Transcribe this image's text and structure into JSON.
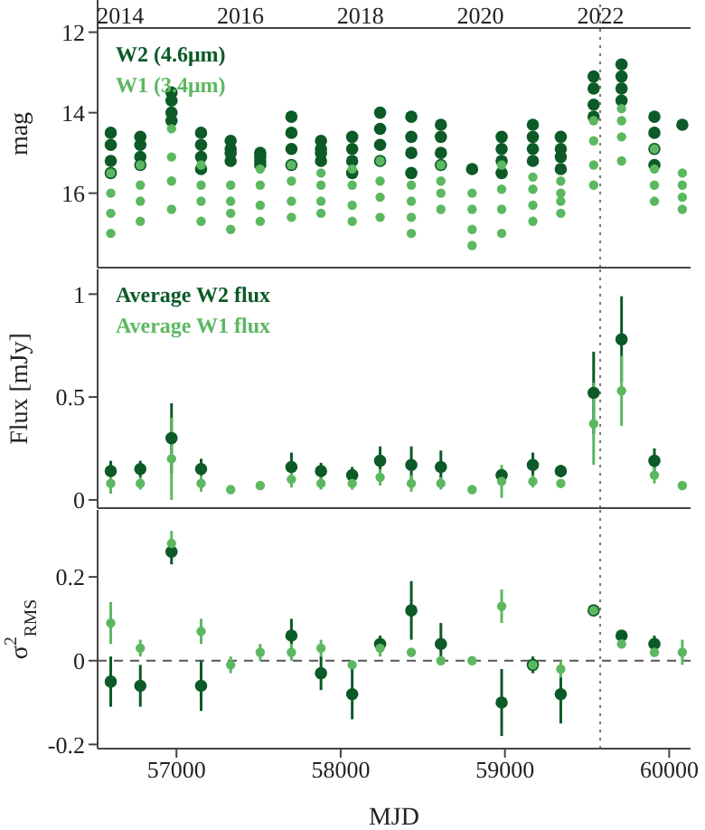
{
  "chart_data": [
    {
      "type": "scatter",
      "ylabel": "mag",
      "xlim": [
        56520,
        60130
      ],
      "xticks": [
        57000,
        58000,
        59000,
        60000
      ],
      "ylim": [
        17.85,
        11.2
      ],
      "yticks": [
        12,
        14,
        16
      ],
      "x2lim": [
        2013.62,
        2023.5
      ],
      "x2ticks": [
        2014,
        2016,
        2018,
        2020,
        2022
      ],
      "tick_labels": "y",
      "marker": "circle",
      "legend": "top left",
      "ref_lines": [
        {
          "axis": "x",
          "value": 59580,
          "line_style": "dotted",
          "color": "#777777"
        }
      ],
      "series": [
        {
          "name": "W2 (4.6μm)",
          "color": "#0b5a27",
          "x": [
            56600,
            56600,
            56600,
            56600,
            56780,
            56780,
            56780,
            56780,
            56970,
            56970,
            56970,
            56970,
            57150,
            57150,
            57150,
            57150,
            57330,
            57330,
            57330,
            57330,
            57510,
            57510,
            57510,
            57510,
            57700,
            57700,
            57700,
            57700,
            57880,
            57880,
            57880,
            57880,
            58070,
            58070,
            58070,
            58070,
            58240,
            58240,
            58240,
            58240,
            58430,
            58430,
            58430,
            58430,
            58610,
            58610,
            58610,
            58610,
            58800,
            58980,
            58980,
            58980,
            58980,
            59170,
            59170,
            59170,
            59170,
            59340,
            59340,
            59340,
            59340,
            59540,
            59540,
            59540,
            59540,
            59710,
            59710,
            59710,
            59710,
            59910,
            59910,
            59910,
            59910,
            60080
          ],
          "values": [
            14.5,
            14.8,
            15.2,
            15.5,
            14.6,
            14.8,
            15.1,
            15.3,
            13.5,
            13.7,
            14.0,
            14.2,
            14.5,
            14.8,
            15.1,
            15.4,
            14.7,
            14.9,
            15.0,
            15.2,
            15.0,
            15.1,
            15.2,
            15.3,
            14.1,
            14.5,
            14.9,
            15.3,
            14.7,
            14.9,
            15.0,
            15.2,
            14.6,
            14.9,
            15.2,
            15.5,
            14.0,
            14.4,
            14.8,
            15.2,
            14.1,
            14.6,
            15.0,
            15.5,
            14.3,
            14.6,
            15.0,
            15.3,
            15.4,
            14.6,
            14.9,
            15.2,
            15.5,
            14.3,
            14.6,
            14.9,
            15.2,
            14.6,
            14.9,
            15.1,
            15.4,
            13.1,
            13.4,
            13.8,
            14.1,
            12.8,
            13.1,
            13.4,
            13.7,
            14.1,
            14.5,
            14.9,
            15.3,
            14.3
          ]
        },
        {
          "name": "W1 (3.4μm)",
          "color": "#5cb860",
          "x": [
            56600,
            56600,
            56600,
            56600,
            56780,
            56780,
            56780,
            56780,
            56970,
            56970,
            56970,
            56970,
            57150,
            57150,
            57150,
            57150,
            57330,
            57330,
            57330,
            57330,
            57510,
            57510,
            57510,
            57510,
            57700,
            57700,
            57700,
            57700,
            57880,
            57880,
            57880,
            57880,
            58070,
            58070,
            58070,
            58070,
            58240,
            58240,
            58240,
            58240,
            58430,
            58430,
            58430,
            58430,
            58610,
            58610,
            58610,
            58610,
            58800,
            58800,
            58800,
            58800,
            58980,
            58980,
            58980,
            58980,
            59170,
            59170,
            59170,
            59170,
            59340,
            59340,
            59340,
            59340,
            59540,
            59540,
            59540,
            59540,
            59710,
            59710,
            59710,
            59710,
            59910,
            59910,
            59910,
            59910,
            60080,
            60080,
            60080,
            60080
          ],
          "values": [
            15.5,
            16.0,
            16.5,
            17.0,
            15.3,
            15.8,
            16.2,
            16.7,
            14.4,
            15.1,
            15.7,
            16.4,
            15.3,
            15.8,
            16.2,
            16.7,
            15.8,
            16.2,
            16.5,
            16.9,
            15.4,
            15.8,
            16.3,
            16.7,
            15.3,
            15.7,
            16.2,
            16.6,
            15.5,
            15.8,
            16.2,
            16.5,
            15.4,
            15.8,
            16.3,
            16.7,
            15.2,
            15.7,
            16.1,
            16.6,
            15.8,
            16.2,
            16.6,
            17.0,
            15.3,
            15.7,
            16.0,
            16.4,
            16.0,
            16.4,
            16.9,
            17.3,
            15.3,
            15.9,
            16.4,
            17.0,
            15.6,
            15.9,
            16.3,
            16.7,
            15.7,
            16.0,
            16.2,
            16.5,
            14.2,
            14.7,
            15.3,
            15.8,
            13.9,
            14.2,
            14.6,
            15.2,
            14.9,
            15.4,
            15.8,
            16.2,
            15.5,
            15.8,
            16.1,
            16.4
          ]
        }
      ]
    },
    {
      "type": "scatter",
      "ylabel": "Flux [mJy]",
      "x": [
        56600,
        56780,
        56970,
        57150,
        57330,
        57510,
        57700,
        57880,
        58070,
        58240,
        58430,
        58610,
        58800,
        58980,
        59170,
        59340,
        59540,
        59710,
        59910,
        60080
      ],
      "xlim": [
        56520,
        60130
      ],
      "xticks": [
        57000,
        58000,
        59000,
        60000
      ],
      "ylim": [
        -0.04,
        1.12
      ],
      "yticks": [
        0,
        0.5,
        1
      ],
      "tick_labels": "y",
      "marker": "circle",
      "legend": "top left",
      "ref_lines": [
        {
          "axis": "x",
          "value": 59580,
          "line_style": "dotted",
          "color": "#777777"
        }
      ],
      "series": [
        {
          "name": "Average W2 flux",
          "color": "#0b5a27",
          "values": [
            0.14,
            0.15,
            0.3,
            0.15,
            null,
            null,
            0.16,
            0.14,
            0.12,
            0.19,
            0.17,
            0.16,
            null,
            0.12,
            0.17,
            0.14,
            0.52,
            0.78,
            0.19,
            null
          ],
          "errors": [
            0.05,
            0.04,
            0.17,
            0.05,
            null,
            null,
            0.07,
            0.04,
            0.04,
            0.07,
            0.09,
            0.08,
            null,
            0.03,
            0.06,
            0.03,
            0.2,
            0.21,
            0.06,
            null
          ]
        },
        {
          "name": "Average W1 flux",
          "color": "#5cb860",
          "values": [
            0.08,
            0.08,
            0.2,
            0.08,
            0.05,
            0.07,
            0.1,
            0.08,
            0.08,
            0.11,
            0.08,
            0.08,
            0.05,
            0.09,
            0.09,
            0.08,
            0.37,
            0.53,
            0.12,
            0.07
          ],
          "errors": [
            0.05,
            0.03,
            0.2,
            0.04,
            0.01,
            0.02,
            0.04,
            0.03,
            0.03,
            0.04,
            0.04,
            0.03,
            0.01,
            0.08,
            0.03,
            0.02,
            0.2,
            0.17,
            0.04,
            0.02
          ]
        }
      ]
    },
    {
      "type": "scatter",
      "ylabel": "σ$^{2}$$_{RMS}$",
      "xlabel": "MJD",
      "x": [
        56600,
        56780,
        56970,
        57150,
        57330,
        57510,
        57700,
        57880,
        58070,
        58240,
        58430,
        58610,
        58800,
        58980,
        59170,
        59340,
        59540,
        59710,
        59910,
        60080
      ],
      "xlim": [
        56520,
        60130
      ],
      "xticks": [
        57000,
        58000,
        59000,
        60000
      ],
      "ylim": [
        -0.21,
        0.36
      ],
      "yticks": [
        -0.2,
        0,
        0.2
      ],
      "marker": "circle",
      "ref_lines": [
        {
          "axis": "x",
          "value": 59580,
          "line_style": "dotted",
          "color": "#777777"
        },
        {
          "axis": "y",
          "value": 0,
          "line_style": "dashed",
          "color": "#555555"
        }
      ],
      "series": [
        {
          "color": "#0b5a27",
          "values": [
            -0.05,
            -0.06,
            0.26,
            -0.06,
            null,
            null,
            0.06,
            -0.03,
            -0.08,
            0.04,
            0.12,
            0.04,
            null,
            -0.1,
            -0.01,
            -0.08,
            0.12,
            0.06,
            0.04,
            null
          ],
          "errors": [
            0.06,
            0.05,
            0.03,
            0.06,
            null,
            null,
            0.04,
            0.04,
            0.06,
            0.02,
            0.07,
            0.05,
            null,
            0.08,
            0.02,
            0.07,
            0.01,
            0.01,
            0.02,
            null
          ]
        },
        {
          "color": "#5cb860",
          "values": [
            0.09,
            0.03,
            0.28,
            0.07,
            -0.01,
            0.02,
            0.02,
            0.03,
            -0.01,
            0.03,
            0.02,
            0.0,
            0.0,
            0.13,
            -0.01,
            -0.02,
            0.12,
            0.04,
            0.02,
            0.02
          ],
          "errors": [
            0.05,
            0.02,
            0.03,
            0.03,
            0.02,
            0.02,
            0.02,
            0.02,
            0.01,
            0.02,
            0.01,
            0.01,
            0.01,
            0.04,
            0.01,
            0.02,
            0.01,
            0.01,
            0.01,
            0.03
          ]
        }
      ]
    }
  ]
}
